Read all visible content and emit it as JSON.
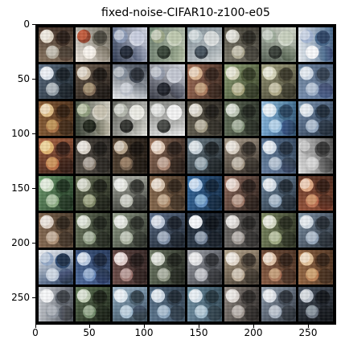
{
  "figure": {
    "title": "fixed-noise-CIFAR10-z100-e05"
  },
  "axes": {
    "x_ticks": [
      "0",
      "50",
      "100",
      "150",
      "200",
      "250"
    ],
    "y_ticks": [
      "0",
      "50",
      "100",
      "150",
      "200",
      "250"
    ]
  },
  "grid": {
    "rows": 8,
    "cols": 8,
    "tiles": [
      {
        "colors": [
          "#8f7b65",
          "#e2d8c8",
          "#3b2b22",
          "#b8b1a3"
        ]
      },
      {
        "colors": [
          "#efe8e0",
          "#8b3f2a",
          "#6e6a5d",
          "#f7f2ea"
        ]
      },
      {
        "colors": [
          "#2f3b54",
          "#8595b3",
          "#d7dbe8",
          "#1d2430"
        ]
      },
      {
        "colors": [
          "#5b6e5d",
          "#98a482",
          "#cfd7c4",
          "#2f3a2f"
        ]
      },
      {
        "colors": [
          "#6b7b86",
          "#b4c2c7",
          "#e2e5e5",
          "#3b4650"
        ]
      },
      {
        "colors": [
          "#7f7c6d",
          "#d1d0c5",
          "#3e3b32",
          "#b9b49f"
        ]
      },
      {
        "colors": [
          "#596558",
          "#9cab99",
          "#d6dccf",
          "#2f352f"
        ]
      },
      {
        "colors": [
          "#eef2f6",
          "#9db1d1",
          "#45678c",
          "#f7f8fb"
        ]
      },
      {
        "colors": [
          "#4f5f72",
          "#dfe6ef",
          "#24303a",
          "#9ea8b0"
        ]
      },
      {
        "colors": [
          "#5c4e40",
          "#cbbca6",
          "#2b231d",
          "#8f7a61"
        ]
      },
      {
        "colors": [
          "#edf0f3",
          "#7f8997",
          "#3d4551",
          "#c2c8d1"
        ]
      },
      {
        "colors": [
          "#3a3d49",
          "#8f97a8",
          "#d3d6de",
          "#1d2028"
        ]
      },
      {
        "colors": [
          "#90604b",
          "#d9b18a",
          "#4d3428",
          "#b58a6a"
        ]
      },
      {
        "colors": [
          "#7c8d67",
          "#d5d4b8",
          "#4d5837",
          "#b2b08b"
        ]
      },
      {
        "colors": [
          "#8a8a6c",
          "#d6d5b8",
          "#58553f",
          "#b7b292"
        ]
      },
      {
        "colors": [
          "#7d95b4",
          "#cfdae8",
          "#4c607a",
          "#a8b9cf"
        ]
      },
      {
        "colors": [
          "#8a5d35",
          "#e0bc82",
          "#4c2f19",
          "#b17d4b"
        ]
      },
      {
        "colors": [
          "#333c2f",
          "#899877",
          "#d7d3c6",
          "#1d2219"
        ]
      },
      {
        "colors": [
          "#4b4d47",
          "#b2b6ab",
          "#f1f1ec",
          "#2a2b28"
        ]
      },
      {
        "colors": [
          "#6d6f6a",
          "#d4d6d3",
          "#f7f7f7",
          "#3b3d3a"
        ]
      },
      {
        "colors": [
          "#656051",
          "#d1cbbd",
          "#2e2a23",
          "#aba48f"
        ]
      },
      {
        "colors": [
          "#5f6c56",
          "#bdc7b5",
          "#2f362b",
          "#93a18a"
        ]
      },
      {
        "colors": [
          "#81b1da",
          "#dbeaf5",
          "#3b6687",
          "#a3c8e5"
        ]
      },
      {
        "colors": [
          "#6a81a0",
          "#d6e0ea",
          "#2f4258",
          "#9fb1c7"
        ]
      },
      {
        "colors": [
          "#955436",
          "#e2b26c",
          "#4e2b1f",
          "#c17d4e"
        ]
      },
      {
        "colors": [
          "#554e45",
          "#d8d1c6",
          "#2b2722",
          "#9b9185"
        ]
      },
      {
        "colors": [
          "#4f3f2f",
          "#b39f85",
          "#221a13",
          "#7f6954"
        ]
      },
      {
        "colors": [
          "#7c5c49",
          "#e0c7b3",
          "#3e2d24",
          "#b49380"
        ]
      },
      {
        "colors": [
          "#5b6b75",
          "#c6d2d9",
          "#2a3338",
          "#90a1ab"
        ]
      },
      {
        "colors": [
          "#8c7f70",
          "#d9d0c3",
          "#4b433a",
          "#b4a999"
        ]
      },
      {
        "colors": [
          "#6b86a6",
          "#d6e1ec",
          "#33475f",
          "#a6b7cb"
        ]
      },
      {
        "colors": [
          "#e7e7e7",
          "#9a9a9a",
          "#4c4c4c",
          "#cfcfcf"
        ]
      },
      {
        "colors": [
          "#5f8a5f",
          "#cfe0c6",
          "#2e4b2f",
          "#98b58f"
        ]
      },
      {
        "colors": [
          "#555d46",
          "#bcc1ad",
          "#2c3123",
          "#8d9574"
        ]
      },
      {
        "colors": [
          "#9c9f95",
          "#e2e4dc",
          "#4d4f48",
          "#c4c7bd"
        ]
      },
      {
        "colors": [
          "#8b6c4f",
          "#d7c2ab",
          "#4b3828",
          "#b39476"
        ]
      },
      {
        "colors": [
          "#2d5f92",
          "#a8c8ea",
          "#173454",
          "#6e9ac7"
        ]
      },
      {
        "colors": [
          "#7b5a4d",
          "#dac2b5",
          "#3e2e27",
          "#ad8b7b"
        ]
      },
      {
        "colors": [
          "#61788f",
          "#d4dee8",
          "#31404f",
          "#9bafc2"
        ]
      },
      {
        "colors": [
          "#9a553a",
          "#e0a67f",
          "#4d2a1d",
          "#c37c59"
        ]
      },
      {
        "colors": [
          "#8d6f56",
          "#ddd0c4",
          "#473728",
          "#b69c84"
        ]
      },
      {
        "colors": [
          "#5f6a53",
          "#cad2c0",
          "#2f3629",
          "#98a58d"
        ]
      },
      {
        "colors": [
          "#7f8a77",
          "#dde1d8",
          "#41473c",
          "#b1b9a8"
        ]
      },
      {
        "colors": [
          "#4b5b73",
          "#bfcadb",
          "#263140",
          "#8b9ab0"
        ]
      },
      {
        "colors": [
          "#2b3a4b",
          "#eff2f6",
          "#131b25",
          "#7d8ca0"
        ]
      },
      {
        "colors": [
          "#6d6a67",
          "#d8d4d0",
          "#393735",
          "#a8a29d"
        ]
      },
      {
        "colors": [
          "#6f7a56",
          "#d6d9c5",
          "#3a412c",
          "#a7b18b"
        ]
      },
      {
        "colors": [
          "#6d7f93",
          "#d1dae4",
          "#36414d",
          "#9eaec0"
        ]
      },
      {
        "colors": [
          "#f1f3f6",
          "#8ea5c5",
          "#2f4b72",
          "#c5d0df"
        ]
      },
      {
        "colors": [
          "#4f6ea0",
          "#b7c9e2",
          "#25385a",
          "#7f9cc7"
        ]
      },
      {
        "colors": [
          "#6f4e4a",
          "#e2cdca",
          "#332422",
          "#a98681"
        ]
      },
      {
        "colors": [
          "#5e6956",
          "#cdd2c6",
          "#2e3329",
          "#99a08f"
        ]
      },
      {
        "colors": [
          "#8c8f97",
          "#dfe0e3",
          "#474a50",
          "#b7b9bf"
        ]
      },
      {
        "colors": [
          "#a18f77",
          "#e4d9cc",
          "#574c3f",
          "#c5b7a4"
        ]
      },
      {
        "colors": [
          "#8e5f45",
          "#e0c2a6",
          "#4a3021",
          "#b68666"
        ]
      },
      {
        "colors": [
          "#9a6a44",
          "#e4c196",
          "#4f3320",
          "#c48f61"
        ]
      },
      {
        "colors": [
          "#c1c5cb",
          "#f1f2f4",
          "#5b616a",
          "#9aa1aa"
        ]
      },
      {
        "colors": [
          "#4f6347",
          "#bdcbb2",
          "#263020",
          "#82987a"
        ]
      },
      {
        "colors": [
          "#88a3ba",
          "#dde8f1",
          "#4a6172",
          "#b1c8d9"
        ]
      },
      {
        "colors": [
          "#5f7b94",
          "#ccd9e6",
          "#2f3f4f",
          "#97b0c6"
        ]
      },
      {
        "colors": [
          "#6d8ca0",
          "#d6e3ec",
          "#36505f",
          "#a7c0d0"
        ]
      },
      {
        "colors": [
          "#7b746e",
          "#ddd7d3",
          "#403b38",
          "#aea6a0"
        ]
      },
      {
        "colors": [
          "#7f8c9d",
          "#dce1e8",
          "#414a56",
          "#aeb8c5"
        ]
      },
      {
        "colors": [
          "#38414d",
          "#b8c0ca",
          "#1a1f26",
          "#76808c"
        ]
      }
    ]
  }
}
